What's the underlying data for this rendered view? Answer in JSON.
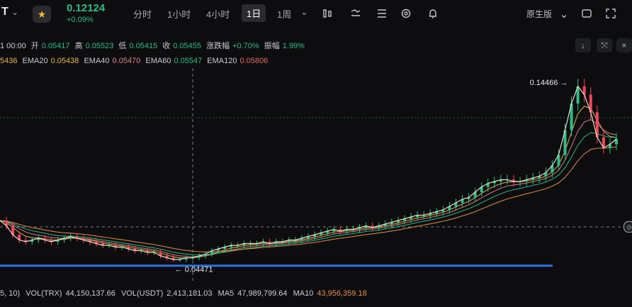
{
  "header": {
    "symbol_fragment": "T",
    "price": "0.12124",
    "change_pct": "+0.09%",
    "timeframes": [
      "分时",
      "1小时",
      "4小时",
      "1日",
      "1周"
    ],
    "active_timeframe": "1日",
    "native_view": "原生版"
  },
  "ohlc": {
    "date": "1 00:00",
    "open_label": "开",
    "open": "0.05417",
    "high_label": "高",
    "high": "0.05523",
    "low_label": "低",
    "low": "0.05415",
    "close_label": "收",
    "close": "0.05455",
    "chg_label": "涨跌幅",
    "chg": "+0.70%",
    "amp_label": "振幅",
    "amp": "1.99%"
  },
  "ema": {
    "first": "5436",
    "ema20_label": "EMA20",
    "ema20": "0.05438",
    "ema40_label": "EMA40",
    "ema40": "0.05470",
    "ema60_label": "EMA60",
    "ema60": "0.05547",
    "ema120_label": "EMA120",
    "ema120": "0.05806"
  },
  "volume": {
    "prefix": "5, 10)",
    "vol_trx_label": "VOL(TRX)",
    "vol_trx": "44,150,137.66",
    "vol_usdt_label": "VOL(USDT)",
    "vol_usdt": "2,413,181.03",
    "ma5_label": "MA5",
    "ma5": "47,989,799.64",
    "ma10_label": "MA10",
    "ma10": "43,956,359.18"
  },
  "colors": {
    "up": "#2ebd85",
    "down": "#f6465d",
    "ema20": "#e6b74a",
    "ema40": "#d7808a",
    "ema60": "#2ebd85",
    "ema120": "#e98f52",
    "support_line": "#2f6fe0"
  },
  "chart_data": {
    "type": "line",
    "title": "",
    "annotations": [
      {
        "label": "0.14466",
        "value": 0.14466,
        "kind": "high"
      },
      {
        "label": "← 0.04471",
        "value": 0.04471,
        "kind": "low"
      }
    ],
    "ylim": [
      0.035,
      0.155
    ],
    "price_series": [
      0.069,
      0.066,
      0.061,
      0.058,
      0.057,
      0.058,
      0.059,
      0.058,
      0.057,
      0.058,
      0.059,
      0.06,
      0.059,
      0.058,
      0.057,
      0.056,
      0.055,
      0.055,
      0.054,
      0.054,
      0.053,
      0.052,
      0.052,
      0.051,
      0.051,
      0.049,
      0.048,
      0.047,
      0.047,
      0.048,
      0.048,
      0.049,
      0.05,
      0.052,
      0.053,
      0.054,
      0.055,
      0.055,
      0.056,
      0.056,
      0.056,
      0.057,
      0.056,
      0.057,
      0.057,
      0.058,
      0.058,
      0.059,
      0.06,
      0.061,
      0.062,
      0.063,
      0.064,
      0.063,
      0.064,
      0.064,
      0.065,
      0.066,
      0.065,
      0.066,
      0.067,
      0.068,
      0.069,
      0.07,
      0.071,
      0.072,
      0.072,
      0.073,
      0.074,
      0.075,
      0.077,
      0.079,
      0.081,
      0.082,
      0.085,
      0.088,
      0.09,
      0.091,
      0.092,
      0.092,
      0.091,
      0.091,
      0.092,
      0.093,
      0.094,
      0.096,
      0.1,
      0.106,
      0.12,
      0.135,
      0.14466,
      0.14,
      0.13,
      0.116,
      0.11,
      0.112,
      0.115
    ],
    "support_level": 0.0435
  }
}
